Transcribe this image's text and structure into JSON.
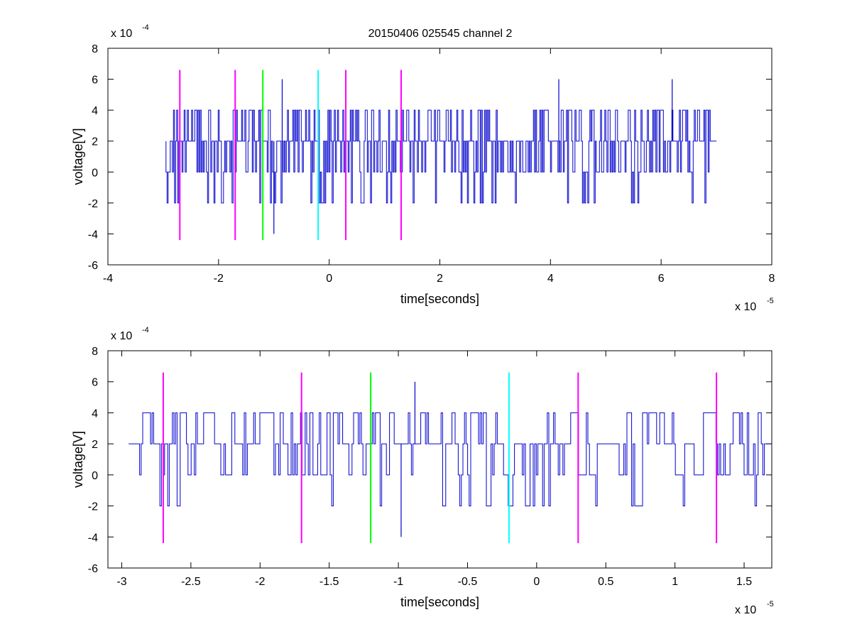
{
  "figure": {
    "title": "20150406 025545 channel 2",
    "background": "#ffffff"
  },
  "chart_data": [
    {
      "type": "line",
      "xlabel": "time[seconds]",
      "ylabel": "voltage[V]",
      "x_multiplier_label": "x 10",
      "x_multiplier_exp": "-5",
      "y_multiplier_label": "x 10",
      "y_multiplier_exp": "-4",
      "xlim": [
        -4,
        8
      ],
      "ylim": [
        -6,
        8
      ],
      "xticks": [
        -4,
        -2,
        0,
        2,
        4,
        6,
        8
      ],
      "xtick_labels": [
        "-4",
        "-2",
        "0",
        "2",
        "4",
        "6",
        "8"
      ],
      "yticks": [
        -6,
        -4,
        -2,
        0,
        2,
        4,
        6,
        8
      ],
      "ytick_labels": [
        "-6",
        "-4",
        "-2",
        "0",
        "2",
        "4",
        "6",
        "8"
      ],
      "grid": false,
      "signal_color": "#0000cc",
      "signal": {
        "x_start": -2.95,
        "x_end": 7.0,
        "levels": [
          -4,
          -2,
          0,
          2,
          4,
          6
        ],
        "spikes": [
          {
            "x": -1.0,
            "y": -4
          },
          {
            "x": -0.85,
            "y": 6
          },
          {
            "x": 4.15,
            "y": 6
          },
          {
            "x": 6.2,
            "y": 6
          }
        ]
      },
      "markers": [
        {
          "x": -2.7,
          "color": "#ff00ff",
          "y_from": -4.4,
          "y_to": 6.6
        },
        {
          "x": -1.7,
          "color": "#ff00ff",
          "y_from": -4.4,
          "y_to": 6.6
        },
        {
          "x": -1.2,
          "color": "#00ff00",
          "y_from": -4.4,
          "y_to": 6.6
        },
        {
          "x": -0.2,
          "color": "#00ffff",
          "y_from": -4.4,
          "y_to": 6.6
        },
        {
          "x": 0.3,
          "color": "#ff00ff",
          "y_from": -4.4,
          "y_to": 6.6
        },
        {
          "x": 1.3,
          "color": "#ff00ff",
          "y_from": -4.4,
          "y_to": 6.6
        }
      ]
    },
    {
      "type": "line",
      "xlabel": "time[seconds]",
      "ylabel": "voltage[V]",
      "x_multiplier_label": "x 10",
      "x_multiplier_exp": "-5",
      "y_multiplier_label": "x 10",
      "y_multiplier_exp": "-4",
      "xlim": [
        -3.1,
        1.7
      ],
      "ylim": [
        -6,
        8
      ],
      "xticks": [
        -3,
        -2.5,
        -2,
        -1.5,
        -1,
        -0.5,
        0,
        0.5,
        1,
        1.5
      ],
      "xtick_labels": [
        "-3",
        "-2.5",
        "-2",
        "-1.5",
        "-1",
        "-0.5",
        "0",
        "0.5",
        "1",
        "1.5"
      ],
      "yticks": [
        -6,
        -4,
        -2,
        0,
        2,
        4,
        6,
        8
      ],
      "ytick_labels": [
        "-6",
        "-4",
        "-2",
        "0",
        "2",
        "4",
        "6",
        "8"
      ],
      "grid": false,
      "signal_color": "#0000cc",
      "signal": {
        "x_start": -2.95,
        "x_end": 1.7,
        "levels": [
          -4,
          -2,
          0,
          2,
          4,
          6
        ],
        "spikes": [
          {
            "x": -0.98,
            "y": -4
          },
          {
            "x": -0.88,
            "y": 6
          }
        ]
      },
      "markers": [
        {
          "x": -2.7,
          "color": "#ff00ff",
          "y_from": -4.4,
          "y_to": 6.6
        },
        {
          "x": -1.7,
          "color": "#ff00ff",
          "y_from": -4.4,
          "y_to": 6.6
        },
        {
          "x": -1.2,
          "color": "#00ff00",
          "y_from": -4.4,
          "y_to": 6.6
        },
        {
          "x": -0.2,
          "color": "#00ffff",
          "y_from": -4.4,
          "y_to": 6.6
        },
        {
          "x": 0.3,
          "color": "#ff00ff",
          "y_from": -4.4,
          "y_to": 6.6
        },
        {
          "x": 1.3,
          "color": "#ff00ff",
          "y_from": -4.4,
          "y_to": 6.6
        }
      ]
    }
  ]
}
